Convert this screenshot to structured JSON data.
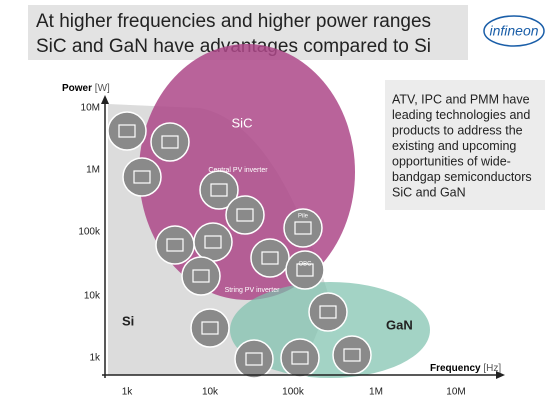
{
  "header": {
    "title_lines": [
      "At higher frequencies and higher power ranges",
      "SiC and GaN have advantages compared to Si"
    ],
    "logo": "infineon"
  },
  "axes": {
    "y_label": "Power",
    "y_unit": "[W]",
    "x_label": "Frequency",
    "x_unit": "[Hz]",
    "y_ticks": [
      "10M",
      "1M",
      "100k",
      "10k",
      "1k"
    ],
    "x_ticks": [
      "1k",
      "10k",
      "100k",
      "1M",
      "10M"
    ]
  },
  "regions": {
    "si": "Si",
    "sic": "SiC",
    "gan": "GaN"
  },
  "icon_labels": {
    "central": "Central PV inverter",
    "string": "String PV inverter",
    "pile": "Pile",
    "obc": "OBC"
  },
  "callout": {
    "lines": [
      "ATV, IPC and PMM have",
      "leading technologies and",
      "products to address the",
      "existing and upcoming",
      "opportunities of wide-",
      "bandgap semiconductors",
      "SiC and GaN"
    ]
  }
}
